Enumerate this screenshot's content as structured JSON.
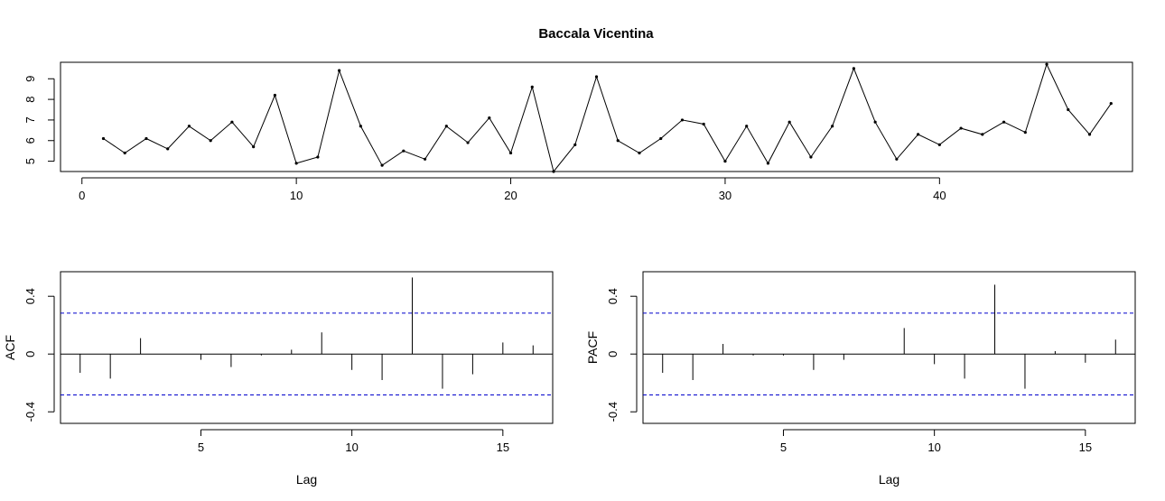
{
  "figure_title": "Baccala Vicentina",
  "chart_data": [
    {
      "type": "line",
      "title": "Baccala Vicentina",
      "xlabel": "",
      "ylabel": "",
      "xlim": [
        -1,
        49
      ],
      "ylim": [
        4.5,
        9.8
      ],
      "xticks": [
        0,
        10,
        20,
        30,
        40
      ],
      "yticks": [
        5,
        6,
        7,
        8,
        9
      ],
      "markers": true,
      "x": [
        1,
        2,
        3,
        4,
        5,
        6,
        7,
        8,
        9,
        10,
        11,
        12,
        13,
        14,
        15,
        16,
        17,
        18,
        19,
        20,
        21,
        22,
        23,
        24,
        25,
        26,
        27,
        28,
        29,
        30,
        31,
        32,
        33,
        34,
        35,
        36,
        37,
        38,
        39,
        40,
        41,
        42,
        43,
        44,
        45,
        46,
        47,
        48
      ],
      "values": [
        6.1,
        5.4,
        6.1,
        5.6,
        6.7,
        6.0,
        6.9,
        5.7,
        8.2,
        4.9,
        5.2,
        9.4,
        6.7,
        4.8,
        5.5,
        5.1,
        6.7,
        5.9,
        7.1,
        5.4,
        8.6,
        4.5,
        5.8,
        9.1,
        6.0,
        5.4,
        6.1,
        7.0,
        6.8,
        5.0,
        6.7,
        4.9,
        6.9,
        5.2,
        6.7,
        9.5,
        6.9,
        5.1,
        6.3,
        5.8,
        6.6,
        6.3,
        6.9,
        6.4,
        9.7,
        7.5,
        6.3,
        7.8
      ]
    },
    {
      "type": "bar",
      "xlabel": "Lag",
      "ylabel": "ACF",
      "xlim": [
        0.35,
        16.65
      ],
      "ylim": [
        -0.48,
        0.57
      ],
      "xticks": [
        5,
        10,
        15
      ],
      "yticks": [
        -0.4,
        0.0,
        0.4
      ],
      "ci": 0.283,
      "x": [
        1,
        2,
        3,
        4,
        5,
        6,
        7,
        8,
        9,
        10,
        11,
        12,
        13,
        14,
        15,
        16
      ],
      "values": [
        -0.13,
        -0.17,
        0.11,
        0.0,
        -0.04,
        -0.09,
        -0.01,
        0.03,
        0.15,
        -0.11,
        -0.18,
        0.53,
        -0.24,
        -0.14,
        0.08,
        0.06
      ]
    },
    {
      "type": "bar",
      "xlabel": "Lag",
      "ylabel": "PACF",
      "xlim": [
        0.35,
        16.65
      ],
      "ylim": [
        -0.48,
        0.57
      ],
      "xticks": [
        5,
        10,
        15
      ],
      "yticks": [
        -0.4,
        0.0,
        0.4
      ],
      "ci": 0.283,
      "x": [
        1,
        2,
        3,
        4,
        5,
        6,
        7,
        8,
        9,
        10,
        11,
        12,
        13,
        14,
        15,
        16
      ],
      "values": [
        -0.13,
        -0.18,
        0.07,
        -0.01,
        -0.01,
        -0.11,
        -0.04,
        0.0,
        0.18,
        -0.07,
        -0.17,
        0.48,
        -0.24,
        0.02,
        -0.06,
        0.1
      ]
    }
  ],
  "colors": {
    "series": "#000000",
    "ci_line": "#0000cc",
    "frame": "#000000"
  }
}
